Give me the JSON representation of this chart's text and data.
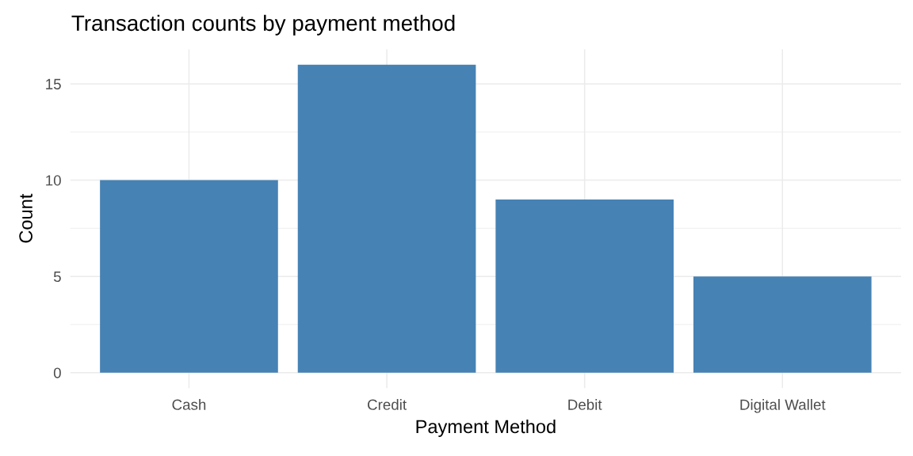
{
  "chart_data": {
    "type": "bar",
    "title": "Transaction counts by payment method",
    "xlabel": "Payment Method",
    "ylabel": "Count",
    "categories": [
      "Cash",
      "Credit",
      "Debit",
      "Digital Wallet"
    ],
    "values": [
      10,
      16,
      9,
      5
    ],
    "color": "#4682b4",
    "ylim": [
      -0.8,
      16.8
    ],
    "yticks": [
      0,
      5,
      10,
      15
    ],
    "grid": true
  }
}
